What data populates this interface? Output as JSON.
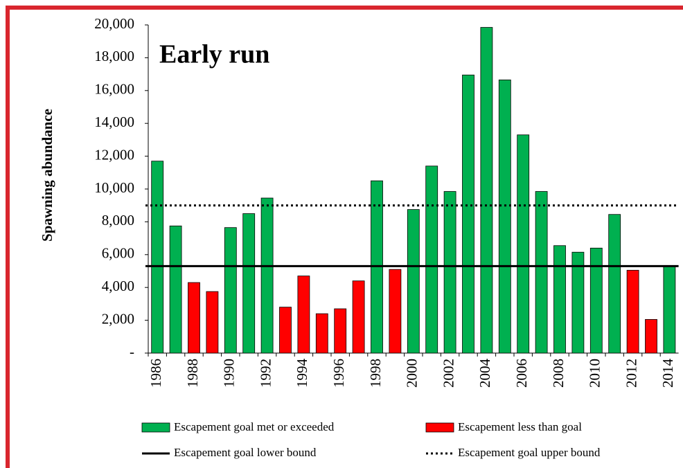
{
  "chart_data": {
    "type": "bar",
    "title": "Early run",
    "y_label": "Spawning abundance",
    "categories": [
      "1986",
      null,
      "1988",
      null,
      "1990",
      null,
      "1992",
      null,
      "1994",
      null,
      "1996",
      null,
      "1998",
      null,
      "2000",
      null,
      "2002",
      null,
      "2004",
      null,
      "2006",
      null,
      "2008",
      null,
      "2010",
      null,
      "2012",
      null,
      "2014"
    ],
    "series": [
      {
        "name": "Escapement goal met or exceeded",
        "color": "#00b050",
        "values": [
          11700,
          7750,
          null,
          null,
          7650,
          8500,
          9450,
          null,
          null,
          null,
          null,
          null,
          10500,
          null,
          8750,
          11400,
          9850,
          16950,
          19850,
          16650,
          13300,
          9850,
          6550,
          6150,
          6400,
          8450,
          null,
          null,
          5300
        ]
      },
      {
        "name": "Escapement less than goal",
        "color": "#ff0000",
        "values": [
          null,
          null,
          4300,
          3750,
          null,
          null,
          null,
          2800,
          4700,
          2400,
          2700,
          4400,
          null,
          5100,
          null,
          null,
          null,
          null,
          null,
          null,
          null,
          null,
          null,
          null,
          null,
          null,
          5050,
          2050,
          null
        ]
      }
    ],
    "lines": [
      {
        "name": "Escapement goal lower bound",
        "value": 5300,
        "style": "solid",
        "color": "#000000"
      },
      {
        "name": "Escapement goal upper bound",
        "value": 9000,
        "style": "dotted",
        "color": "#000000"
      }
    ],
    "ylim": [
      0,
      20000
    ],
    "yticks": [
      {
        "value": 0,
        "label": "-"
      },
      {
        "value": 2000,
        "label": "2,000"
      },
      {
        "value": 4000,
        "label": "4,000"
      },
      {
        "value": 6000,
        "label": "6,000"
      },
      {
        "value": 8000,
        "label": "8,000"
      },
      {
        "value": 10000,
        "label": "10,000"
      },
      {
        "value": 12000,
        "label": "12,000"
      },
      {
        "value": 14000,
        "label": "14,000"
      },
      {
        "value": 16000,
        "label": "16,000"
      },
      {
        "value": 18000,
        "label": "18,000"
      },
      {
        "value": 20000,
        "label": "20,000"
      }
    ],
    "grid": false
  }
}
